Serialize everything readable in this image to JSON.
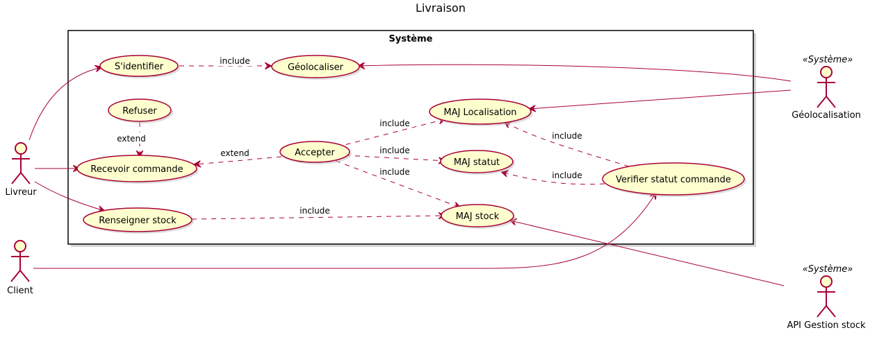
{
  "title": "Livraison",
  "system": {
    "name": "Système"
  },
  "actors": {
    "livreur": "Livreur",
    "client": "Client",
    "geolocalisation": "Géolocalisation",
    "geolocalisation_stereotype": "«Système»",
    "api_stock": "API Gestion stock",
    "api_stock_stereotype": "«Système»"
  },
  "usecases": {
    "sidentifier": "S'identifier",
    "geolocaliser": "Géolocaliser",
    "refuser": "Refuser",
    "recevoir_commande": "Recevoir commande",
    "accepter": "Accepter",
    "maj_localisation": "MAJ Localisation",
    "maj_statut": "MAJ statut",
    "maj_stock": "MAJ stock",
    "renseigner_stock": "Renseigner stock",
    "verifier_statut": "Verifier statut commande"
  },
  "relations": {
    "sidentifier_geolocaliser": "include",
    "refuser_recevoir": "extend",
    "accepter_recevoir": "extend",
    "accepter_localisation": "include",
    "accepter_statut": "include",
    "accepter_stock": "include",
    "renseigner_stock": "include",
    "verifier_localisation": "include",
    "verifier_statut": "include"
  },
  "colors": {
    "usecase_fill": "#FEFECE",
    "stroke": "#A80036",
    "system_border": "#000000"
  }
}
